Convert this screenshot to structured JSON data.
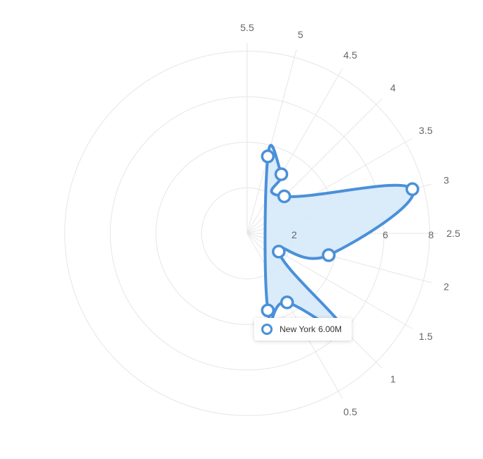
{
  "chart_data": {
    "type": "radar",
    "spoke_labels": [
      "5.5",
      "5",
      "4.5",
      "4",
      "3.5",
      "3",
      "2.5",
      "2",
      "1.5",
      "1",
      "0.5"
    ],
    "radial_tick_labels": [
      "2",
      "6",
      "8"
    ],
    "series": [
      {
        "name": "New York",
        "points": [
          {
            "spoke": "0",
            "value": 3.5
          },
          {
            "spoke": "0.5",
            "value": 3.5
          },
          {
            "spoke": "1",
            "value": 6.0
          },
          {
            "spoke": "1.5",
            "value": 1.6
          },
          {
            "spoke": "2",
            "value": 3.7
          },
          {
            "spoke": "3",
            "value": 7.5
          },
          {
            "spoke": "4",
            "value": 2.3
          },
          {
            "spoke": "4.5",
            "value": 3.0
          },
          {
            "spoke": "5",
            "value": 3.5
          }
        ],
        "color": "#4a90d9",
        "fill": "#d6e9f8"
      }
    ],
    "tooltip": {
      "series": "New York",
      "value": "6.00M"
    },
    "grid": true
  }
}
